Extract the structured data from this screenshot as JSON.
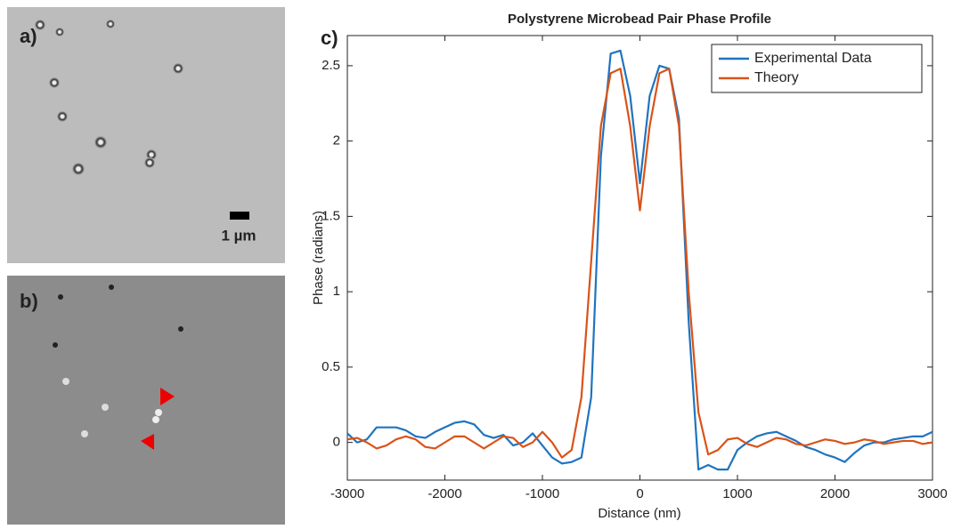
{
  "panels": [
    {
      "label": "a)"
    },
    {
      "label": "b)"
    }
  ],
  "scale_bar": "1 µm",
  "chart_data": {
    "type": "line",
    "panel_label": "c)",
    "title": "Polystyrene Microbead Pair Phase Profile",
    "x_label": "Distance (nm)",
    "y_label": "Phase (radians)",
    "x": [
      -3000,
      -2900,
      -2800,
      -2700,
      -2600,
      -2500,
      -2400,
      -2300,
      -2200,
      -2100,
      -2000,
      -1900,
      -1800,
      -1700,
      -1600,
      -1500,
      -1400,
      -1300,
      -1200,
      -1100,
      -1000,
      -900,
      -800,
      -700,
      -600,
      -500,
      -400,
      -300,
      -200,
      -100,
      0,
      100,
      200,
      300,
      400,
      500,
      600,
      700,
      800,
      900,
      1000,
      1100,
      1200,
      1300,
      1400,
      1500,
      1600,
      1700,
      1800,
      1900,
      2000,
      2100,
      2200,
      2300,
      2400,
      2500,
      2600,
      2700,
      2800,
      2900,
      3000
    ],
    "series": [
      {
        "name": "Experimental Data",
        "color": "#1f74c0",
        "values": [
          0.06,
          0.0,
          0.02,
          0.1,
          0.1,
          0.1,
          0.08,
          0.04,
          0.03,
          0.07,
          0.1,
          0.13,
          0.14,
          0.12,
          0.05,
          0.03,
          0.05,
          -0.02,
          0.0,
          0.06,
          -0.02,
          -0.1,
          -0.14,
          -0.13,
          -0.1,
          0.3,
          1.9,
          2.58,
          2.6,
          2.3,
          1.72,
          2.3,
          2.5,
          2.48,
          2.15,
          0.8,
          -0.18,
          -0.15,
          -0.18,
          -0.18,
          -0.05,
          0.0,
          0.04,
          0.06,
          0.07,
          0.04,
          0.01,
          -0.03,
          -0.05,
          -0.08,
          -0.1,
          -0.13,
          -0.07,
          -0.02,
          0.0,
          0.0,
          0.02,
          0.03,
          0.04,
          0.04,
          0.07
        ]
      },
      {
        "name": "Theory",
        "color": "#d95319",
        "values": [
          0.02,
          0.03,
          0.0,
          -0.04,
          -0.02,
          0.02,
          0.04,
          0.02,
          -0.03,
          -0.04,
          0.0,
          0.04,
          0.04,
          0.0,
          -0.04,
          0.0,
          0.04,
          0.03,
          -0.03,
          0.0,
          0.07,
          0.0,
          -0.1,
          -0.05,
          0.3,
          1.2,
          2.1,
          2.45,
          2.48,
          2.1,
          1.54,
          2.1,
          2.45,
          2.48,
          2.1,
          1.0,
          0.2,
          -0.08,
          -0.05,
          0.02,
          0.03,
          -0.01,
          -0.03,
          0.0,
          0.03,
          0.02,
          -0.01,
          -0.02,
          0.0,
          0.02,
          0.01,
          -0.01,
          0.0,
          0.02,
          0.01,
          -0.01,
          0.0,
          0.01,
          0.01,
          -0.01,
          0.0
        ]
      }
    ],
    "xlim": [
      -3000,
      3000
    ],
    "ylim": [
      -0.25,
      2.7
    ],
    "xticks": [
      -3000,
      -2000,
      -1000,
      0,
      1000,
      2000,
      3000
    ],
    "yticks": [
      0,
      0.5,
      1,
      1.5,
      2,
      2.5
    ],
    "legend": "top-right"
  }
}
